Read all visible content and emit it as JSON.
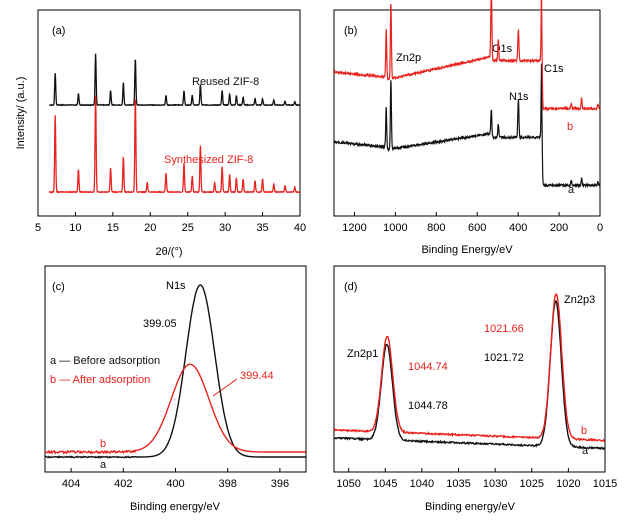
{
  "colors": {
    "black_series": "#111111",
    "red_series": "#e8231e"
  },
  "chart_data": [
    {
      "id": "a",
      "type": "line",
      "panel_label": "(a)",
      "xlabel": "2θ/(°)",
      "ylabel": "Intensity/ (a.u.)",
      "xlim": [
        5,
        40
      ],
      "x_ticks": [
        5,
        10,
        15,
        20,
        25,
        30,
        35,
        40
      ],
      "y_ticks_shown": false,
      "series": [
        {
          "name": "Reused ZIF-8",
          "color": "#111111",
          "peaks": [
            [
              7.3,
              1.0
            ],
            [
              10.4,
              0.35
            ],
            [
              12.7,
              1.6
            ],
            [
              14.7,
              0.45
            ],
            [
              16.4,
              0.7
            ],
            [
              18.0,
              1.45
            ],
            [
              22.1,
              0.3
            ],
            [
              24.5,
              0.45
            ],
            [
              25.6,
              0.3
            ],
            [
              26.7,
              0.65
            ],
            [
              29.6,
              0.45
            ],
            [
              30.6,
              0.35
            ],
            [
              31.5,
              0.3
            ],
            [
              32.4,
              0.25
            ],
            [
              34.0,
              0.2
            ],
            [
              35.0,
              0.2
            ],
            [
              36.5,
              0.15
            ],
            [
              38.0,
              0.12
            ],
            [
              39.3,
              0.1
            ]
          ]
        },
        {
          "name": "Synthesized ZIF-8",
          "color": "#e8231e",
          "peaks": [
            [
              7.3,
              2.4
            ],
            [
              10.4,
              0.7
            ],
            [
              12.7,
              3.0
            ],
            [
              14.7,
              0.75
            ],
            [
              16.4,
              1.1
            ],
            [
              18.0,
              3.0
            ],
            [
              19.6,
              0.3
            ],
            [
              22.1,
              0.6
            ],
            [
              24.5,
              0.9
            ],
            [
              25.6,
              0.5
            ],
            [
              26.7,
              1.45
            ],
            [
              28.6,
              0.3
            ],
            [
              29.6,
              0.8
            ],
            [
              30.6,
              0.55
            ],
            [
              31.5,
              0.45
            ],
            [
              32.4,
              0.4
            ],
            [
              34.0,
              0.35
            ],
            [
              35.0,
              0.4
            ],
            [
              36.5,
              0.25
            ],
            [
              38.0,
              0.2
            ],
            [
              39.3,
              0.15
            ]
          ]
        }
      ]
    },
    {
      "id": "b",
      "type": "line",
      "panel_label": "(b)",
      "xlabel": "Binding Energy/eV",
      "ylabel": "",
      "xlim": [
        1300,
        0
      ],
      "x_ticks": [
        1200,
        1000,
        800,
        600,
        400,
        200,
        0
      ],
      "y_ticks_shown": false,
      "annotations": [
        "Zn2p",
        "O1s",
        "N1s",
        "C1s"
      ],
      "series": [
        {
          "name": "a",
          "color": "#111111"
        },
        {
          "name": "b",
          "color": "#e8231e"
        }
      ]
    },
    {
      "id": "c",
      "type": "line",
      "panel_label": "(c)",
      "xlabel": "Binding energy/eV",
      "ylabel": "",
      "xlim": [
        405,
        395
      ],
      "x_ticks": [
        404,
        402,
        400,
        398,
        396
      ],
      "y_ticks_shown": false,
      "annotations": {
        "peak_name": "N1s",
        "a_peak": "399.05",
        "b_peak": "399.44"
      },
      "legend": [
        "a — Before adsorption",
        "b — After adsorption"
      ],
      "series": [
        {
          "name": "a",
          "color": "#111111",
          "center": 399.05,
          "sigma": 0.55,
          "height": 1.0
        },
        {
          "name": "b",
          "color": "#e8231e",
          "center": 399.44,
          "sigma": 0.72,
          "height": 0.51
        }
      ]
    },
    {
      "id": "d",
      "type": "line",
      "panel_label": "(d)",
      "xlabel": "Binding energy/eV",
      "ylabel": "",
      "xlim": [
        1052,
        1015
      ],
      "x_ticks": [
        1050,
        1045,
        1040,
        1035,
        1030,
        1025,
        1020,
        1015
      ],
      "y_ticks_shown": false,
      "annotations": {
        "zn2p1": "Zn2p1",
        "zn2p3": "Zn2p3",
        "b_p1": "1044.74",
        "a_p1": "1044.78",
        "b_p3": "1021.66",
        "a_p3": "1021.72"
      },
      "series": [
        {
          "name": "a",
          "color": "#111111",
          "peaks": [
            [
              1044.78,
              0.58
            ],
            [
              1021.72,
              0.88
            ]
          ]
        },
        {
          "name": "b",
          "color": "#e8231e",
          "peaks": [
            [
              1044.74,
              0.58
            ],
            [
              1021.66,
              0.88
            ]
          ]
        }
      ]
    }
  ]
}
